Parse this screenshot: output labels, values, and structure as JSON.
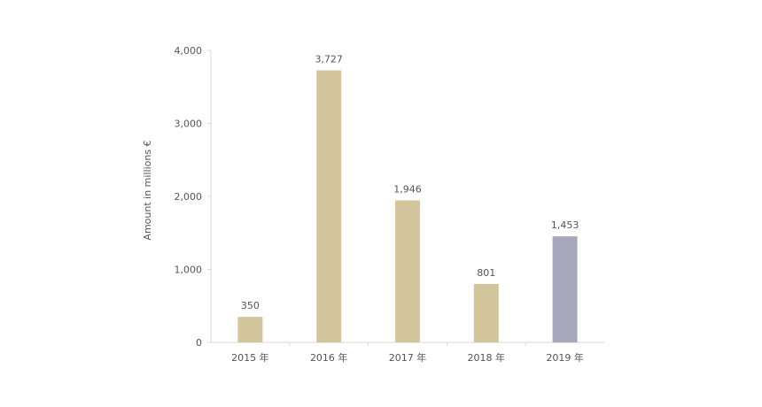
{
  "chart_data": {
    "type": "bar",
    "ylabel": "Amount in millions €",
    "categories": [
      "2015 年",
      "2016 年",
      "2017 年",
      "2018 年",
      "2019 年"
    ],
    "values": [
      350,
      3727,
      1946,
      801,
      1453
    ],
    "value_labels": [
      "350",
      "3,727",
      "1,946",
      "801",
      "1,453"
    ],
    "bar_colors": [
      "#d3c59c",
      "#d3c59c",
      "#d3c59c",
      "#d3c59c",
      "#a8a8bd"
    ],
    "ylim": [
      0,
      4000
    ],
    "yticks": [
      {
        "value": 0,
        "label": "0"
      },
      {
        "value": 1000,
        "label": "1,000"
      },
      {
        "value": 2000,
        "label": "2,000"
      },
      {
        "value": 3000,
        "label": "3,000"
      },
      {
        "value": 4000,
        "label": "4,000"
      }
    ],
    "grid": false,
    "legend": "none"
  }
}
